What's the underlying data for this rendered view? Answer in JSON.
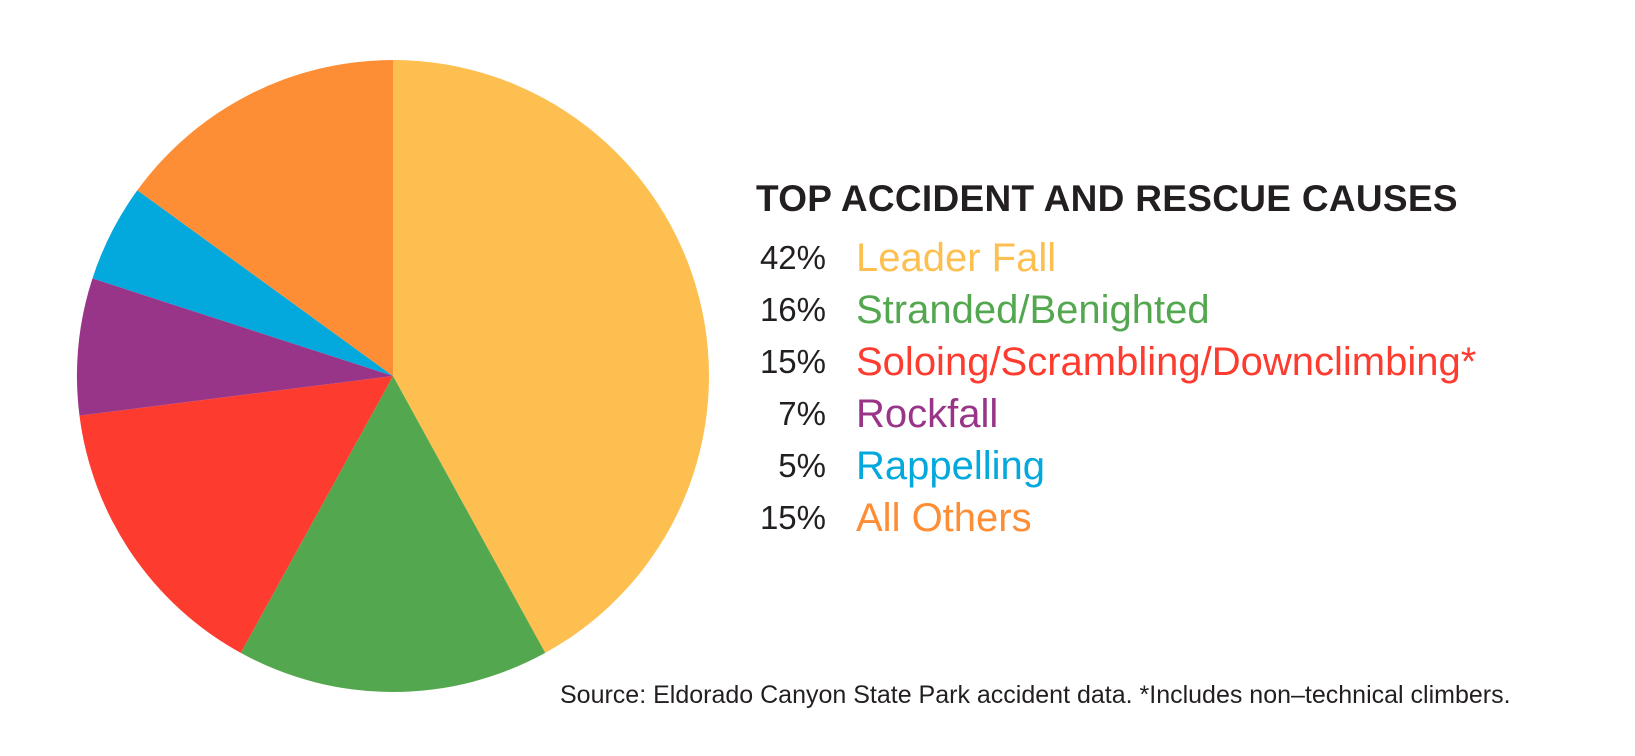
{
  "chart_data": {
    "type": "pie",
    "title": "TOP ACCIDENT AND RESCUE CAUSES",
    "slices": [
      {
        "label": "Leader Fall",
        "value": 42,
        "value_label": "42%",
        "color": "#FDBF4F"
      },
      {
        "label": "Stranded/Benighted",
        "value": 16,
        "value_label": "16%",
        "color": "#53A84F"
      },
      {
        "label": "Soloing/Scrambling/Downclimbing*",
        "value": 15,
        "value_label": "15%",
        "color": "#FE3B2F"
      },
      {
        "label": "Rockfall",
        "value": 7,
        "value_label": "7%",
        "color": "#983588"
      },
      {
        "label": "Rappelling",
        "value": 5,
        "value_label": "5%",
        "color": "#03A8DD"
      },
      {
        "label": "All Others",
        "value": 15,
        "value_label": "15%",
        "color": "#FE8E36"
      }
    ],
    "start_angle": "top",
    "direction": "clockwise",
    "legend_position": "right",
    "note": "Source: Eldorado Canyon State Park accident data. *Includes non–technical climbers."
  }
}
